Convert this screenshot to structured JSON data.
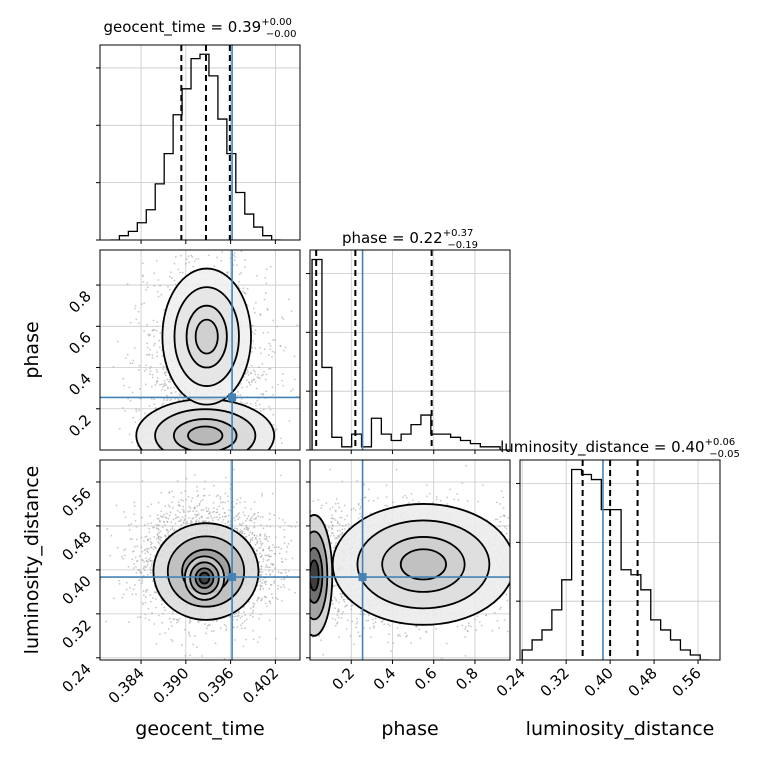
{
  "colors": {
    "truth": "#4682b4",
    "line": "#000000",
    "grid": "#c8c8c8",
    "scatter": "#9a9a9a"
  },
  "chart_data": {
    "type": "corner",
    "parameters": [
      "geocent_time",
      "phase",
      "luminosity_distance"
    ],
    "truths": {
      "geocent_time": 0.3962,
      "phase": 0.255,
      "luminosity_distance": 0.387
    },
    "titles": [
      {
        "param": "geocent_time",
        "name": "geocent_time",
        "median": "0.39",
        "plus": "+0.00",
        "minus": "−0.00"
      },
      {
        "param": "phase",
        "name": "phase",
        "median": "0.22",
        "plus": "+0.37",
        "minus": "−0.19"
      },
      {
        "param": "luminosity_distance",
        "name": "luminosity_distance",
        "median": "0.40",
        "plus": "+0.06",
        "minus": "−0.05"
      }
    ],
    "axis_labels": {
      "geocent_time": "geocent_time",
      "phase": "phase",
      "luminosity_distance": "luminosity_distance"
    },
    "ranges": {
      "geocent_time": [
        0.3785,
        0.4053
      ],
      "phase": [
        0.0,
        0.97
      ],
      "luminosity_distance": [
        0.236,
        0.6
      ]
    },
    "ticks": {
      "geocent_time": {
        "values": [
          0.384,
          0.39,
          0.396,
          0.402
        ],
        "labels": [
          "0.384",
          "0.390",
          "0.396",
          "0.402"
        ]
      },
      "phase": {
        "values": [
          0.2,
          0.4,
          0.6,
          0.8
        ],
        "labels": [
          "0.2",
          "0.4",
          "0.6",
          "0.8"
        ]
      },
      "luminosity_distance": {
        "values": [
          0.24,
          0.32,
          0.4,
          0.48,
          0.56
        ],
        "labels": [
          "0.24",
          "0.32",
          "0.40",
          "0.48",
          "0.56"
        ]
      }
    },
    "histograms": {
      "geocent_time": {
        "bins": [
          0.3799,
          0.3811,
          0.3823,
          0.3835,
          0.3847,
          0.3859,
          0.3871,
          0.3883,
          0.3895,
          0.3907,
          0.3919,
          0.3931,
          0.3943,
          0.3955,
          0.3967,
          0.3979,
          0.3991,
          0.4003,
          0.4015,
          0.4027
        ],
        "counts": [
          0,
          1,
          2,
          4,
          7,
          13,
          20,
          29,
          35,
          42,
          43,
          38,
          28,
          20,
          11,
          6,
          3,
          1,
          0
        ],
        "quantiles": [
          0.3894,
          0.3927,
          0.3959
        ]
      },
      "phase": {
        "bins": [
          0.01,
          0.058,
          0.106,
          0.154,
          0.202,
          0.25,
          0.298,
          0.346,
          0.394,
          0.442,
          0.49,
          0.538,
          0.586,
          0.634,
          0.682,
          0.73,
          0.778,
          0.826,
          0.874,
          0.922,
          0.97
        ],
        "counts": [
          60,
          26,
          4,
          1,
          5,
          1,
          10,
          5,
          3,
          5,
          8,
          11,
          5,
          5,
          4,
          3,
          2,
          1,
          1,
          0
        ],
        "quantiles": [
          0.03,
          0.22,
          0.59
        ]
      },
      "luminosity_distance": {
        "bins": [
          0.24,
          0.258,
          0.276,
          0.294,
          0.312,
          0.33,
          0.348,
          0.366,
          0.384,
          0.402,
          0.42,
          0.438,
          0.456,
          0.474,
          0.492,
          0.51,
          0.528,
          0.546,
          0.564,
          0.582
        ],
        "counts": [
          2,
          4,
          6,
          10,
          16,
          38,
          37,
          36,
          30,
          30,
          18,
          17,
          14,
          8,
          6,
          4,
          2,
          1,
          0
        ],
        "quantiles": [
          0.35,
          0.4,
          0.45
        ]
      }
    },
    "panels_2d": [
      {
        "x": "geocent_time",
        "y": "phase",
        "center": [
          0.3927,
          0.3
        ],
        "spread": [
          0.0045,
          0.32
        ],
        "points": 1900,
        "blobs": [
          {
            "cx": 0.3925,
            "cy": 0.02,
            "sx": 0.0028,
            "sy": 0.035,
            "level": 1.0
          },
          {
            "cx": 0.3926,
            "cy": 0.07,
            "sx": 0.0042,
            "sy": 0.08,
            "level": 0.35
          },
          {
            "cx": 0.3928,
            "cy": 0.55,
            "sx": 0.0027,
            "sy": 0.15,
            "level": 0.22
          }
        ]
      },
      {
        "x": "geocent_time",
        "y": "luminosity_distance",
        "center": [
          0.3927,
          0.41
        ],
        "spread": [
          0.0045,
          0.055
        ],
        "points": 2600,
        "blobs": [
          {
            "cx": 0.3927,
            "cy": 0.397,
            "sx": 0.0032,
            "sy": 0.04,
            "level": 0.65
          },
          {
            "cx": 0.3925,
            "cy": 0.385,
            "sx": 0.0012,
            "sy": 0.018,
            "level": 1.0
          }
        ]
      },
      {
        "x": "phase",
        "y": "luminosity_distance",
        "center": [
          0.4,
          0.41
        ],
        "spread": [
          0.3,
          0.055
        ],
        "points": 2600,
        "blobs": [
          {
            "cx": 0.02,
            "cy": 0.39,
            "sx": 0.04,
            "sy": 0.05,
            "level": 1.0
          },
          {
            "cx": 0.55,
            "cy": 0.41,
            "sx": 0.2,
            "sy": 0.05,
            "level": 0.3
          }
        ]
      }
    ],
    "grid": true
  }
}
